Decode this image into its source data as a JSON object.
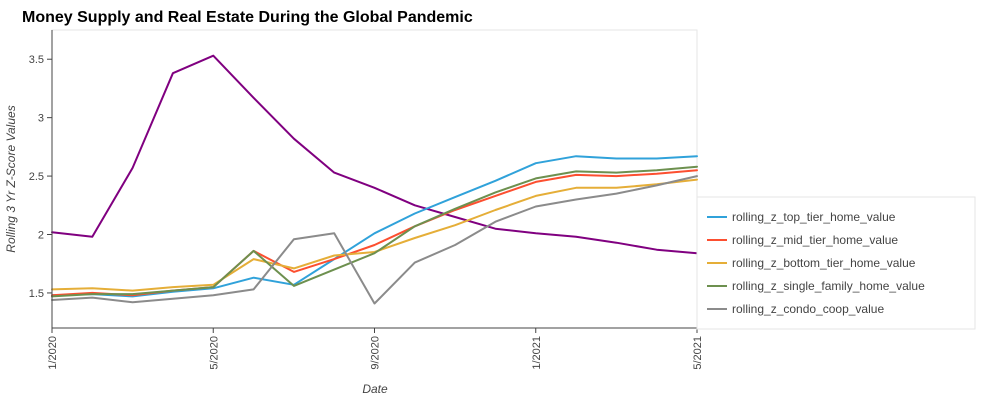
{
  "chart_data": {
    "type": "line",
    "title": "Money Supply and Real Estate During the Global Pandemic",
    "xlabel": "Date",
    "ylabel": "Rolling 3 Yr Z-Score Values",
    "x": [
      "1/2020",
      "2/2020",
      "3/2020",
      "4/2020",
      "5/2020",
      "6/2020",
      "7/2020",
      "8/2020",
      "9/2020",
      "10/2020",
      "11/2020",
      "12/2020",
      "1/2021",
      "2/2021",
      "3/2021",
      "4/2021",
      "5/2021"
    ],
    "x_tick_labels": [
      "1/2020",
      "5/2020",
      "9/2020",
      "1/2021",
      "5/2021"
    ],
    "y_ticks": [
      1.5,
      2,
      2.5,
      3,
      3.5
    ],
    "y_tick_labels": [
      "1.5",
      "2",
      "2.5",
      "3",
      "3.5"
    ],
    "ylim": [
      1.2,
      3.75
    ],
    "grid": false,
    "legend_position": "right",
    "series": [
      {
        "name": "",
        "color": "#800080",
        "values": [
          2.02,
          1.98,
          2.57,
          3.38,
          3.53,
          3.17,
          2.82,
          2.53,
          2.4,
          2.25,
          2.15,
          2.05,
          2.01,
          1.98,
          1.93,
          1.87,
          1.84
        ]
      },
      {
        "name": "rolling_z_top_tier_home_value",
        "color": "#30a2da",
        "values": [
          1.48,
          1.49,
          1.47,
          1.51,
          1.54,
          1.63,
          1.57,
          1.79,
          2.01,
          2.18,
          2.32,
          2.46,
          2.61,
          2.67,
          2.65,
          2.65,
          2.67
        ]
      },
      {
        "name": "rolling_z_mid_tier_home_value",
        "color": "#fc4f30",
        "values": [
          1.48,
          1.5,
          1.48,
          1.52,
          1.55,
          1.86,
          1.68,
          1.79,
          1.91,
          2.07,
          2.21,
          2.33,
          2.45,
          2.51,
          2.5,
          2.52,
          2.55
        ]
      },
      {
        "name": "rolling_z_bottom_tier_home_value",
        "color": "#e5ae38",
        "values": [
          1.53,
          1.54,
          1.52,
          1.55,
          1.57,
          1.79,
          1.71,
          1.82,
          1.85,
          1.97,
          2.08,
          2.21,
          2.33,
          2.4,
          2.4,
          2.43,
          2.47
        ]
      },
      {
        "name": "rolling_z_single_family_home_value",
        "color": "#6d904f",
        "values": [
          1.47,
          1.49,
          1.49,
          1.52,
          1.55,
          1.86,
          1.56,
          1.7,
          1.84,
          2.07,
          2.22,
          2.36,
          2.48,
          2.54,
          2.53,
          2.55,
          2.58
        ]
      },
      {
        "name": "rolling_z_condo_coop_value",
        "color": "#8b8b8b",
        "values": [
          1.44,
          1.46,
          1.42,
          1.45,
          1.48,
          1.53,
          1.96,
          2.01,
          1.41,
          1.76,
          1.91,
          2.11,
          2.24,
          2.3,
          2.35,
          2.42,
          2.5
        ]
      }
    ]
  }
}
